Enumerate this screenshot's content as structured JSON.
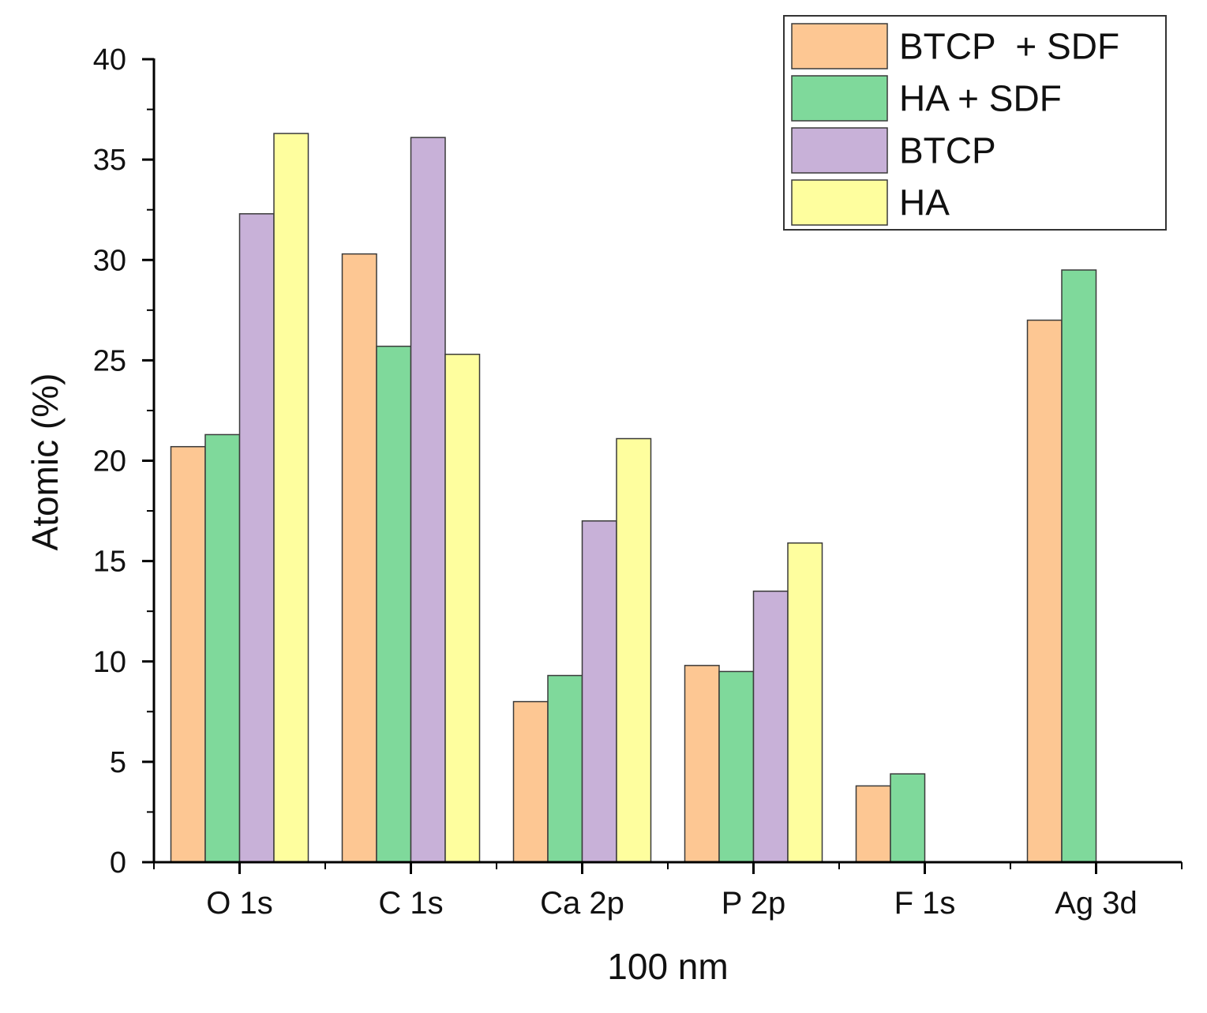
{
  "chart_data": {
    "type": "bar",
    "title": "",
    "xlabel": "100 nm",
    "ylabel": "Atomic (%)",
    "ylim": [
      0,
      40
    ],
    "yticks": [
      0,
      5,
      10,
      15,
      20,
      25,
      30,
      35,
      40
    ],
    "categories": [
      "O 1s",
      "C 1s",
      "Ca 2p",
      "P 2p",
      "F 1s",
      "Ag 3d"
    ],
    "legend_position": "top-right",
    "series": [
      {
        "name": "BTCP  + SDF",
        "color": "#FDC793",
        "values": [
          20.7,
          30.3,
          8.0,
          9.8,
          3.8,
          27.0
        ]
      },
      {
        "name": "HA + SDF",
        "color": "#7FD99B",
        "values": [
          21.3,
          25.7,
          9.3,
          9.5,
          4.4,
          29.5
        ]
      },
      {
        "name": "BTCP",
        "color": "#C8B1D8",
        "values": [
          32.3,
          36.1,
          17.0,
          13.5,
          0,
          0
        ]
      },
      {
        "name": "HA",
        "color": "#FEFE9E",
        "values": [
          36.3,
          25.3,
          21.1,
          15.9,
          0,
          0
        ]
      }
    ]
  }
}
